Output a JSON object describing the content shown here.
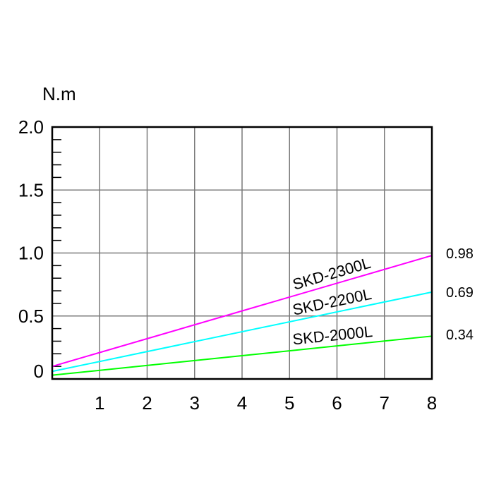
{
  "chart_data": {
    "type": "line",
    "ylabel": "N.m",
    "xlim": [
      0,
      8
    ],
    "ylim": [
      0,
      2.0
    ],
    "x_ticks": [
      "1",
      "2",
      "3",
      "4",
      "5",
      "6",
      "7",
      "8"
    ],
    "y_ticks": [
      "0",
      "0.5",
      "1.0",
      "1.5",
      "2.0"
    ],
    "grid": true,
    "series": [
      {
        "name": "SKD-2300L",
        "color": "#ff00ff",
        "x": [
          0,
          8
        ],
        "y": [
          0.1,
          0.98
        ],
        "end_label": "0.98"
      },
      {
        "name": "SKD-2200L",
        "color": "#00ffff",
        "x": [
          0,
          8
        ],
        "y": [
          0.06,
          0.69
        ],
        "end_label": "0.69"
      },
      {
        "name": "SKD-2000L",
        "color": "#00ff00",
        "x": [
          0,
          8
        ],
        "y": [
          0.03,
          0.34
        ],
        "end_label": "0.34"
      }
    ]
  }
}
